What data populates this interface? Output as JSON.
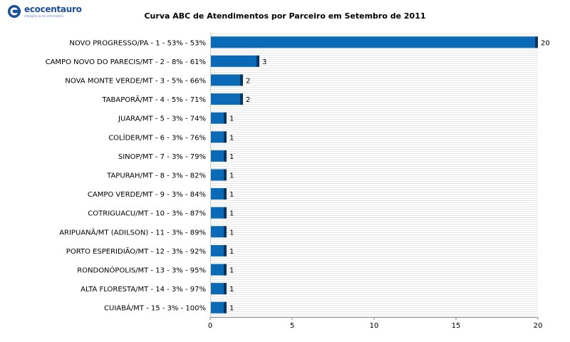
{
  "logo": {
    "name": "ecocentauro",
    "tagline": "inteligência em informática"
  },
  "colors": {
    "bar_front": "#0a6ab5",
    "bar_side": "#06365f",
    "stripe": "#e4e4e4",
    "axis": "#888888"
  },
  "chart_data": {
    "type": "bar",
    "orientation": "horizontal",
    "title": "Curva ABC de Atendimentos por Parceiro em Setembro de 2011",
    "xlabel": "",
    "ylabel": "",
    "xlim": [
      0,
      20
    ],
    "xticks": [
      0,
      5,
      10,
      15,
      20
    ],
    "grid": true,
    "legend": "none",
    "categories": [
      "NOVO PROGRESSO/PA  -  1  -  53%  -  53%",
      "CAMPO NOVO DO PARECIS/MT  -  2  -  8%  -  61%",
      "NOVA MONTE VERDE/MT  -  3  -  5%  -  66%",
      "TABAPORÃ/MT  -  4  -  5%  -  71%",
      "JUARA/MT  -  5  -  3%  -  74%",
      "COLÍDER/MT  -  6  -  3%  -  76%",
      "SINOP/MT  -  7  -  3%  -  79%",
      "TAPURAH/MT  -  8  -  3%  -  82%",
      "CAMPO VERDE/MT  -  9  -  3%  -  84%",
      "COTRIGUACU/MT  -  10  -  3%  -  87%",
      "ARIPUANÃ/MT (ADILSON)  -  11  -  3%  -  89%",
      "PORTO ESPERIDIÃO/MT  -  12  -  3%  -  92%",
      "RONDONÓPOLIS/MT  -  13  -  3%  -  95%",
      "ALTA FLORESTA/MT  -  14  -  3%  -  97%",
      "CUIABÁ/MT  -  15  -  3%  -  100%"
    ],
    "values": [
      20,
      3,
      2,
      2,
      1,
      1,
      1,
      1,
      1,
      1,
      1,
      1,
      1,
      1,
      1
    ]
  }
}
